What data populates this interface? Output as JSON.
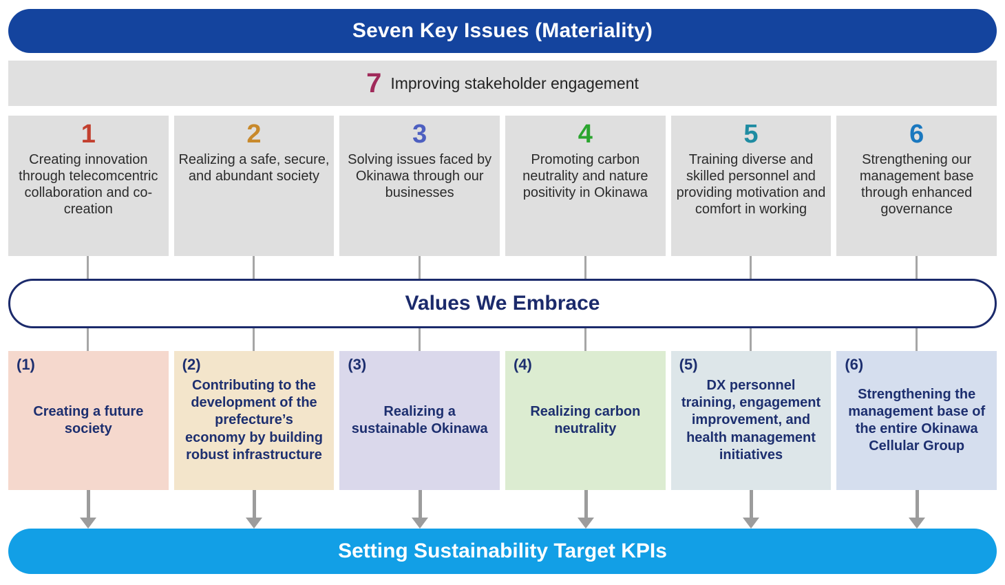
{
  "top_banner": {
    "label": "Seven Key Issues (Materiality)",
    "bg": "#14449e"
  },
  "engagement_bar": {
    "number": "7",
    "number_color": "#a02a5a",
    "label": "Improving stakeholder engagement"
  },
  "key_issues": [
    {
      "number": "1",
      "number_color": "#c2402f",
      "text": "Creating innovation through telecomcentric collaboration and co-creation"
    },
    {
      "number": "2",
      "number_color": "#c8892b",
      "text": "Realizing a safe, secure, and abundant society"
    },
    {
      "number": "3",
      "number_color": "#4d5fc0",
      "text": "Solving issues faced by Okinawa through our businesses"
    },
    {
      "number": "4",
      "number_color": "#2aa52e",
      "text": "Promoting carbon neutrality and nature positivity in Okinawa"
    },
    {
      "number": "5",
      "number_color": "#1f8ca2",
      "text": "Training diverse and skilled personnel and providing motivation and comfort in working"
    },
    {
      "number": "6",
      "number_color": "#1a78bf",
      "text": "Strengthening our management base through enhanced governance"
    }
  ],
  "values_banner": {
    "label": "Values We Embrace",
    "border_color": "#1b2a6b"
  },
  "values": [
    {
      "number": "(1)",
      "bg": "#f5d8cd",
      "text": "Creating a future society"
    },
    {
      "number": "(2)",
      "bg": "#f3e5cb",
      "text": "Contributing to the development of the prefecture’s economy by building robust infrastructure"
    },
    {
      "number": "(3)",
      "bg": "#dad8eb",
      "text": "Realizing a sustainable Okinawa"
    },
    {
      "number": "(4)",
      "bg": "#dcecd1",
      "text": "Realizing carbon neutrality"
    },
    {
      "number": "(5)",
      "bg": "#dde6e9",
      "text": "DX personnel training, engagement improvement, and health management initiatives"
    },
    {
      "number": "(6)",
      "bg": "#d5deee",
      "text": "Strengthening the management base of the entire Okinawa Cellular Group"
    }
  ],
  "bottom_banner": {
    "label": "Setting Sustainability Target KPIs",
    "bg": "#129fe6"
  },
  "colors": {
    "box_gray": "#dfdfdf",
    "connector_gray": "#a6a6a6",
    "navy_text": "#1d2f6f"
  }
}
